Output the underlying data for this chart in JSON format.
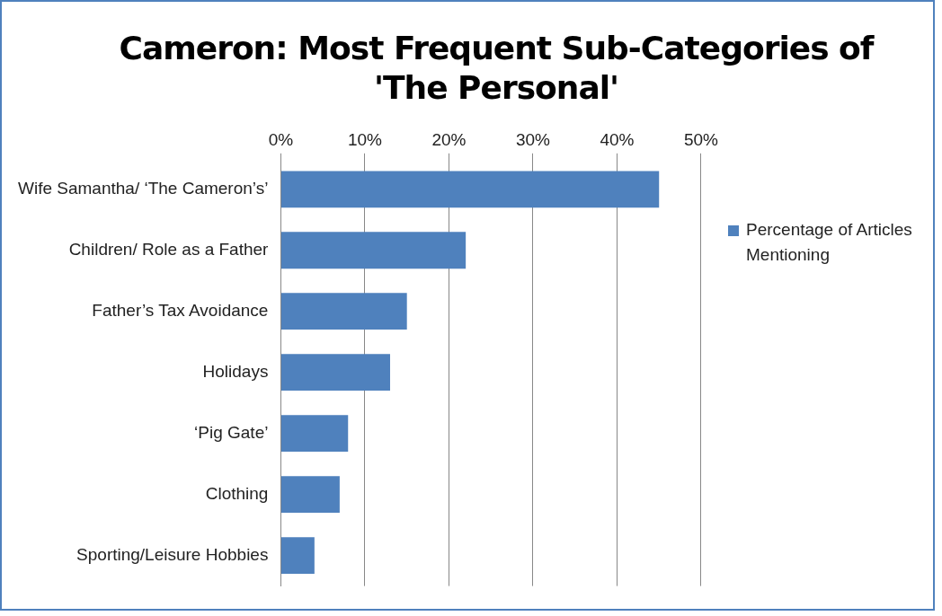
{
  "chart_data": {
    "type": "bar",
    "orientation": "horizontal",
    "title": "Cameron: Most Frequent Sub-Categories of 'The Personal'",
    "categories": [
      "Wife Samantha/ ‘The Cameron’s’",
      "Children/ Role as a Father",
      "Father’s Tax Avoidance",
      "Holidays",
      "‘Pig Gate’",
      "Clothing",
      "Sporting/Leisure Hobbies"
    ],
    "series": [
      {
        "name": "Percentage of Articles Mentioning",
        "color": "#4f81bd",
        "values": [
          45,
          22,
          15,
          13,
          8,
          7,
          4
        ]
      }
    ],
    "xlim": [
      0,
      50
    ],
    "xticks": [
      {
        "value": 0,
        "label": "0%"
      },
      {
        "value": 10,
        "label": "10%"
      },
      {
        "value": 20,
        "label": "20%"
      },
      {
        "value": 30,
        "label": "30%"
      },
      {
        "value": 40,
        "label": "40%"
      },
      {
        "value": 50,
        "label": "50%"
      }
    ],
    "grid": "x",
    "legend": "right"
  }
}
